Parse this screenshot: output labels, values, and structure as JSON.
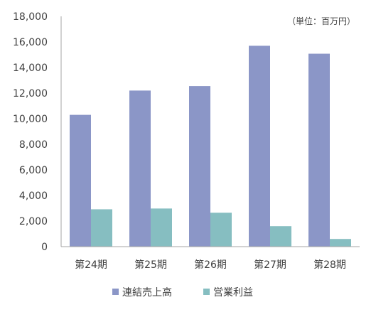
{
  "chart_data": {
    "type": "bar",
    "unit_label": "（単位：百万円）",
    "categories": [
      "第24期",
      "第25期",
      "第26期",
      "第27期",
      "第28期"
    ],
    "series": [
      {
        "name": "連結売上高",
        "color": "#8b96c7",
        "values": [
          10300,
          12200,
          12550,
          15700,
          15080
        ]
      },
      {
        "name": "営業利益",
        "color": "#86bec1",
        "values": [
          2920,
          2980,
          2650,
          1600,
          600
        ]
      }
    ],
    "ylim": [
      0,
      18000
    ],
    "yticks": [
      0,
      2000,
      4000,
      6000,
      8000,
      10000,
      12000,
      14000,
      16000,
      18000
    ],
    "ytick_labels": [
      "0",
      "2,000",
      "4,000",
      "6,000",
      "8,000",
      "10,000",
      "12,000",
      "14,000",
      "16,000",
      "18,000"
    ],
    "grid": false,
    "legend_position": "bottom"
  }
}
